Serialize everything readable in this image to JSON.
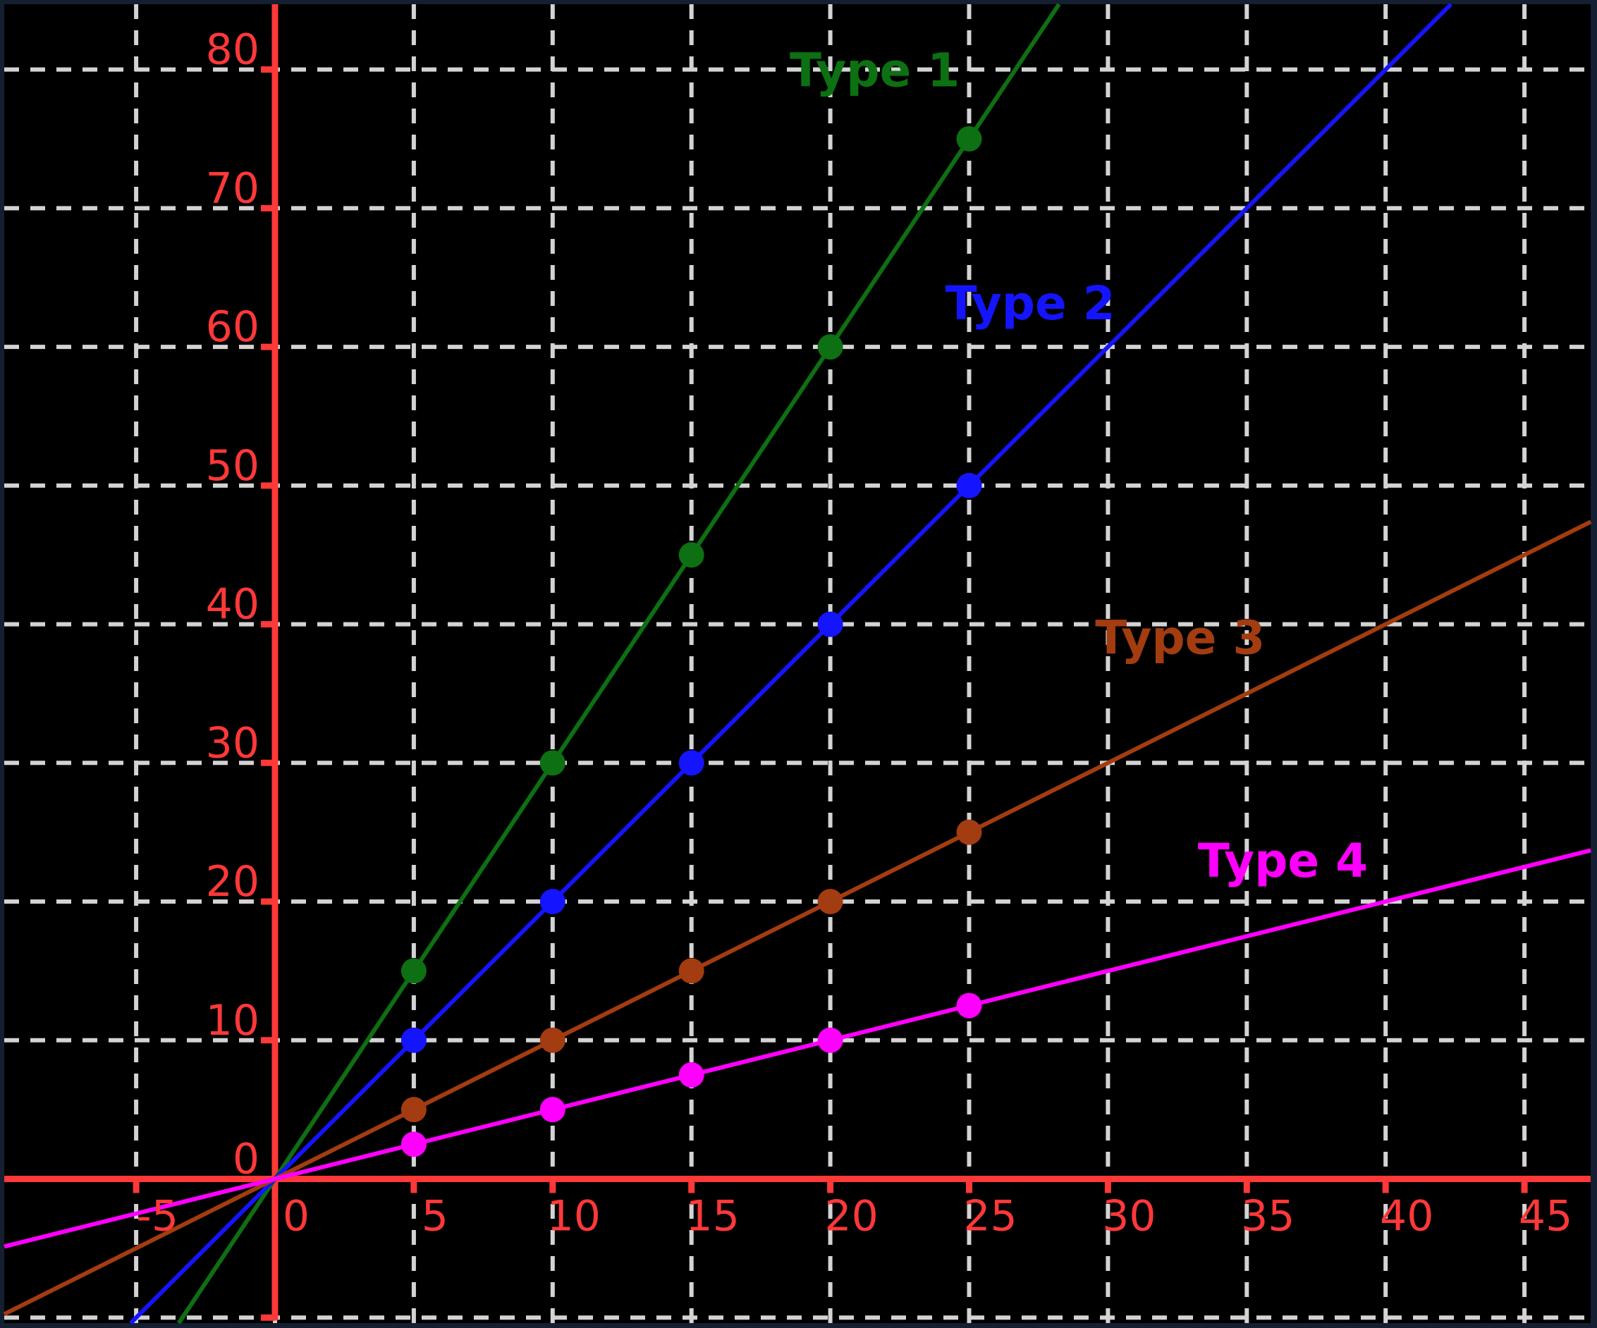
{
  "chart_data": {
    "type": "line",
    "title": "",
    "xlabel": "",
    "ylabel": "",
    "x_range": [
      -9.75,
      47.39
    ],
    "y_range": [
      -10.4,
      84.71
    ],
    "x_ticks": {
      "values": [
        -5,
        0,
        5,
        10,
        15,
        20,
        25,
        30,
        35,
        40,
        45
      ],
      "labels": [
        "-5",
        "0",
        "5",
        "10",
        "15",
        "20",
        "25",
        "30",
        "35",
        "40",
        "45"
      ]
    },
    "y_ticks": {
      "values": [
        0,
        10,
        20,
        30,
        40,
        50,
        60,
        70,
        80
      ],
      "labels": [
        "0",
        "10",
        "20",
        "30",
        "40",
        "50",
        "60",
        "70",
        "80"
      ]
    },
    "grid": {
      "style": "dashed",
      "color": "#d3d3d3",
      "x_lines": [
        -5,
        0,
        5,
        10,
        15,
        20,
        25,
        30,
        35,
        40,
        45
      ],
      "y_lines": [
        -10,
        0,
        10,
        20,
        30,
        40,
        50,
        60,
        70,
        80
      ]
    },
    "axes": {
      "color": "#ff3838",
      "x_axis_at_y": 0,
      "y_axis_at_x": 0,
      "y_axis_bottom_value": -10
    },
    "legend_position": "inline-labels",
    "series": [
      {
        "name": "Type 1",
        "color": "#0d7012",
        "slope": 3,
        "x": [
          5,
          10,
          15,
          20,
          25
        ],
        "y": [
          15,
          30,
          45,
          60,
          75
        ],
        "label": {
          "text": "Type 1",
          "x": 21.6,
          "y": 80.0
        }
      },
      {
        "name": "Type 2",
        "color": "#1414ff",
        "slope": 2,
        "x": [
          5,
          10,
          15,
          20,
          25
        ],
        "y": [
          10,
          20,
          30,
          40,
          50
        ],
        "label": {
          "text": "Type 2",
          "x": 27.2,
          "y": 63.2
        }
      },
      {
        "name": "Type 3",
        "color": "#a33c10",
        "slope": 1,
        "x": [
          5,
          10,
          15,
          20,
          25
        ],
        "y": [
          5,
          10,
          15,
          20,
          25
        ],
        "label": {
          "text": "Type 3",
          "x": 32.6,
          "y": 39.1
        }
      },
      {
        "name": "Type 4",
        "color": "#ff00ff",
        "slope": 0.5,
        "x": [
          5,
          10,
          15,
          20,
          25
        ],
        "y": [
          2.5,
          5,
          7.5,
          10,
          12.5
        ],
        "label": {
          "text": "Type 4",
          "x": 36.3,
          "y": 23.0
        }
      }
    ],
    "colors": {
      "figure_bg": "#141f31",
      "plot_bg": "#000000",
      "tick_label_color": "#ff3838"
    }
  }
}
